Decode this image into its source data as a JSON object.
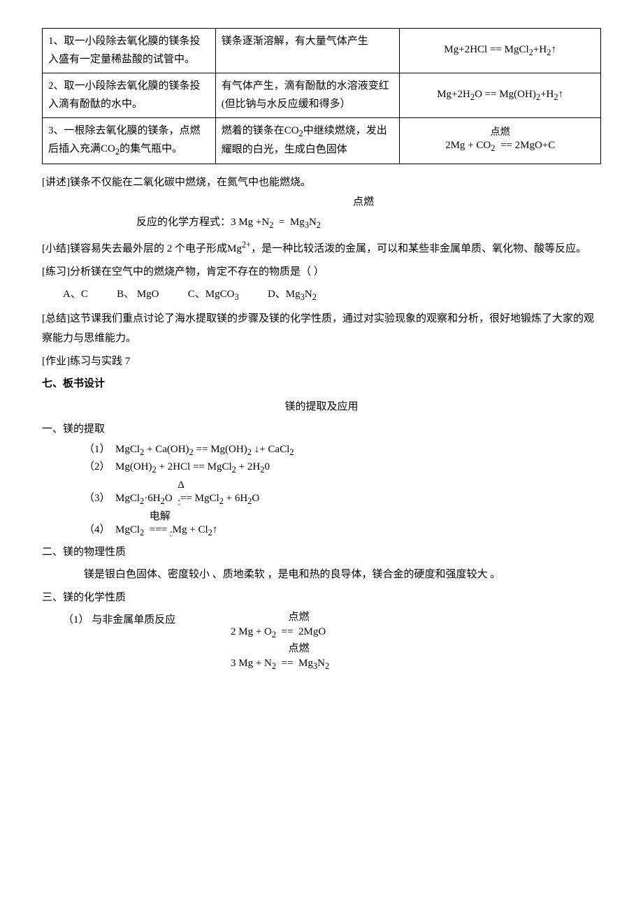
{
  "table": {
    "rows": [
      {
        "c1": "1、取一小段除去氧化膜的镁条投入盛有一定量稀盐酸的试管中。",
        "c2": "镁条逐渐溶解，有大量气体产生",
        "c3_html": "Mg+2HCl == MgCl<sub>2</sub>+H<sub>2</sub>↑"
      },
      {
        "c1": "2、取一小段除去氧化膜的镁条投入滴有酚酞的水中。",
        "c2": "有气体产生，滴有酚酞的水溶液变红(但比钠与水反应缓和得多）",
        "c3_html": "Mg+2H<sub>2</sub>O == Mg(OH)<sub>2</sub>+H<sub>2</sub>↑"
      },
      {
        "c1": "3、一根除去氧化膜的镁条，点燃后插入充满CO<sub>2</sub>的集气瓶中。",
        "c2": "燃着的镁条在CO<sub>2</sub>中继续燃烧，发出耀眼的白光，生成白色固体",
        "c3_top": "点燃",
        "c3_html": "2Mg + CO<sub>2</sub>&nbsp;&nbsp;== 2MgO+C"
      }
    ]
  },
  "p1": "[讲述]镁条不仅能在二氧化碳中燃烧，在氮气中也能燃烧。",
  "eq1_top": "点燃",
  "eq1_label": "反应的化学方程式：",
  "eq1_html": "3 Mg +N<sub>2</sub>&nbsp;&nbsp;=&nbsp;&nbsp;Mg<sub>3</sub>N<sub>2</sub>",
  "p2_html": "[小结]镁容易失去最外层的 2 个电子形成Mg<sup>2+</sup>，是一种比较活泼的金属，可以和某些非金属单质、氧化物、酸等反应。",
  "p3": "[练习]分析镁在空气中的燃烧产物，肯定不存在的物质是（    ）",
  "choices": {
    "a": "A、C",
    "b_html": "B、 MgO",
    "c_html": "C、MgCO<sub>3</sub>",
    "d_html": "D、Mg<sub>3</sub>N<sub>2</sub>"
  },
  "p4": "[总结]这节课我们重点讨论了海水提取镁的步骤及镁的化学性质，通过对实验现象的观察和分析，很好地锻炼了大家的观察能力与思维能力。",
  "p5": "[作业]练习与实践 7",
  "h1": "七、板书设计",
  "title": "镁的提取及应用",
  "s1": "一、镁的提取",
  "eqA_html": "（1）&nbsp;&nbsp;MgCl<sub>2</sub> + Ca(OH)<sub>2</sub> == Mg(OH)<sub>2</sub>&nbsp;↓+ CaCl<sub>2</sub>",
  "eqB_html": "（2）&nbsp;&nbsp;Mg(OH)<sub>2</sub> + 2HCl == MgCl<sub>2</sub> + 2H<sub>2</sub>0",
  "eqC_sym": "Δ",
  "eqC_html": "（3）&nbsp;&nbsp;MgCl<sub>2</sub>·6H<sub>2</sub>O&nbsp;&nbsp;<span class=\"wavy\">.</span>== MgCl<sub>2</sub> + 6H<sub>2</sub>O",
  "eqD_sym": "电解",
  "eqD_html": "（4）&nbsp;&nbsp;MgCl<sub>2</sub>&nbsp;&nbsp;===&nbsp;<span class=\"wavy\">.</span>Mg + Cl<sub>2</sub>↑",
  "s2": "二、镁的物理性质",
  "p6": "镁是银白色固体、密度较小 、质地柔软 ，是电和热的良导体，镁合金的硬度和强度较大 。",
  "s3": "三、镁的化学性质",
  "s3_1": "（1） 与非金属单质反应",
  "eqE_top": "点燃",
  "eqE_html": "2 Mg + O<sub>2</sub>&nbsp;&nbsp;==&nbsp;&nbsp;2MgO",
  "eqF_top": "点燃",
  "eqF_html": "3 Mg + N<sub>2</sub>&nbsp;&nbsp;==&nbsp;&nbsp;Mg<sub>3</sub>N<sub>2</sub>"
}
